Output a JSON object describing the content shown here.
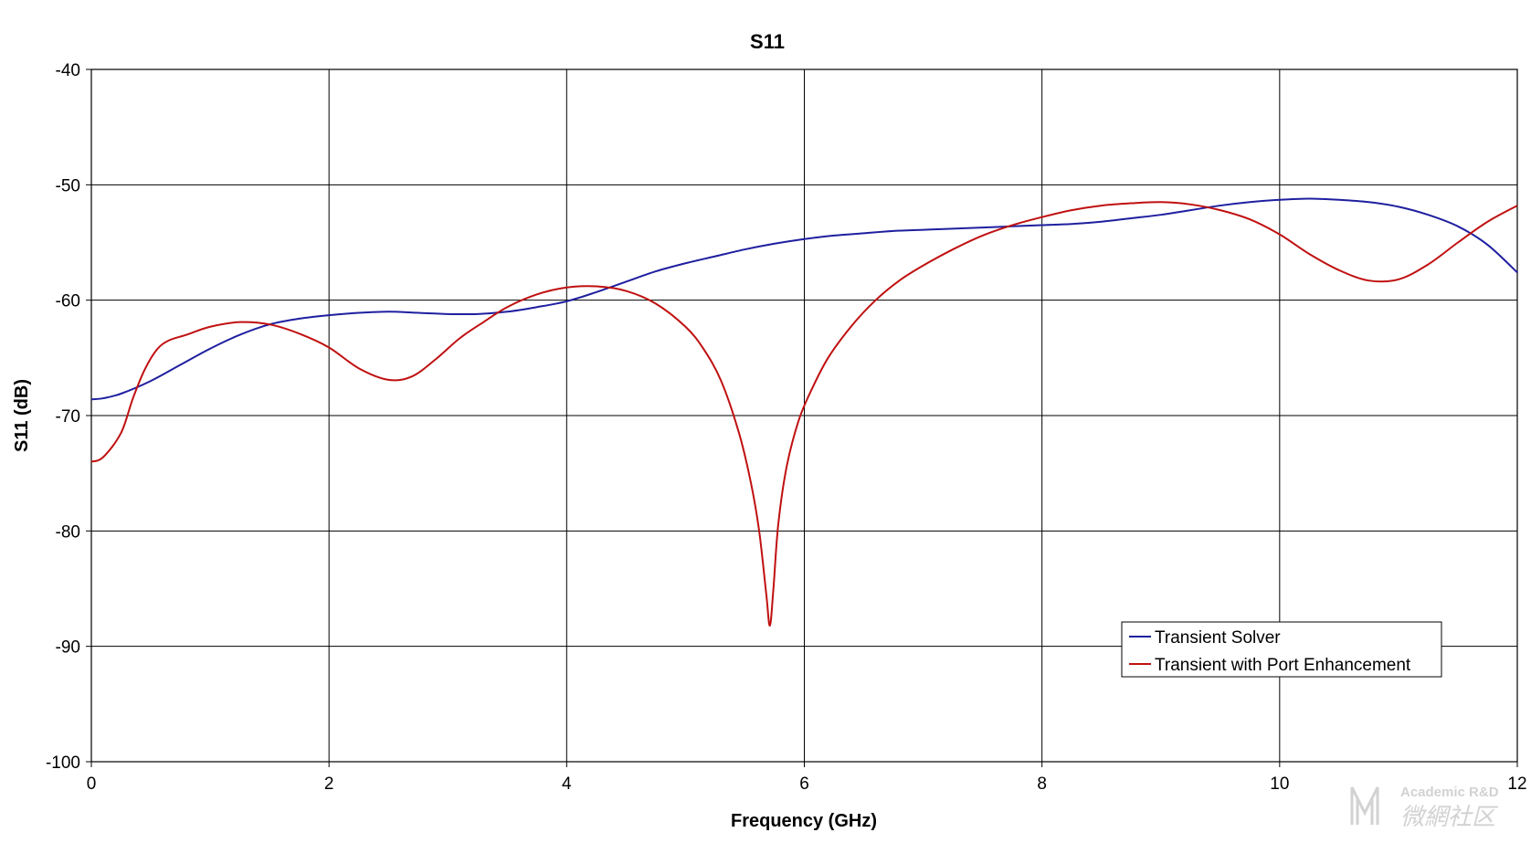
{
  "chart_data": {
    "type": "line",
    "title": "S11",
    "xlabel": "Frequency (GHz)",
    "ylabel": "S11 (dB)",
    "xlim": [
      0,
      12
    ],
    "ylim": [
      -100,
      -40
    ],
    "x_ticks": [
      "0",
      "2",
      "4",
      "6",
      "8",
      "10",
      "12"
    ],
    "y_ticks": [
      "-40",
      "-50",
      "-60",
      "-70",
      "-80",
      "-90",
      "-100"
    ],
    "grid": true,
    "legend_position": "bottom-right",
    "series": [
      {
        "name": "Transient Solver",
        "color": "#1f1fa0",
        "x": [
          0,
          0.1,
          0.25,
          0.5,
          0.75,
          1.0,
          1.25,
          1.5,
          1.75,
          2.0,
          2.25,
          2.5,
          2.75,
          3.0,
          3.25,
          3.5,
          3.75,
          4.0,
          4.25,
          4.5,
          4.75,
          5.0,
          5.25,
          5.5,
          5.75,
          6.0,
          6.25,
          6.5,
          6.75,
          7.0,
          7.25,
          7.5,
          7.75,
          8.0,
          8.25,
          8.5,
          8.75,
          9.0,
          9.25,
          9.5,
          9.75,
          10.0,
          10.25,
          10.5,
          10.75,
          11.0,
          11.25,
          11.5,
          11.75,
          12.0
        ],
        "y": [
          -68.6,
          -68.5,
          -68.1,
          -67.0,
          -65.6,
          -64.2,
          -63.0,
          -62.1,
          -61.6,
          -61.3,
          -61.1,
          -61.0,
          -61.1,
          -61.2,
          -61.2,
          -61.0,
          -60.6,
          -60.1,
          -59.3,
          -58.4,
          -57.5,
          -56.8,
          -56.2,
          -55.6,
          -55.1,
          -54.7,
          -54.4,
          -54.2,
          -54.0,
          -53.9,
          -53.8,
          -53.7,
          -53.6,
          -53.5,
          -53.4,
          -53.2,
          -52.9,
          -52.6,
          -52.2,
          -51.8,
          -51.5,
          -51.3,
          -51.2,
          -51.3,
          -51.5,
          -51.9,
          -52.6,
          -53.6,
          -55.2,
          -57.6
        ]
      },
      {
        "name": "Transient with Port Enhancement",
        "color": "#c01010",
        "x": [
          0,
          0.1,
          0.25,
          0.35,
          0.45,
          0.55,
          0.65,
          0.8,
          1.0,
          1.25,
          1.5,
          1.75,
          2.0,
          2.25,
          2.5,
          2.7,
          2.9,
          3.1,
          3.3,
          3.5,
          3.75,
          4.0,
          4.25,
          4.5,
          4.75,
          5.0,
          5.15,
          5.3,
          5.45,
          5.55,
          5.62,
          5.68,
          5.71,
          5.74,
          5.78,
          5.85,
          5.95,
          6.05,
          6.2,
          6.4,
          6.6,
          6.8,
          7.0,
          7.25,
          7.5,
          7.75,
          8.0,
          8.25,
          8.5,
          8.75,
          9.0,
          9.25,
          9.5,
          9.75,
          10.0,
          10.25,
          10.5,
          10.75,
          11.0,
          11.25,
          11.5,
          11.75,
          12.0
        ],
        "y": [
          -74.0,
          -73.6,
          -71.5,
          -68.5,
          -66.0,
          -64.3,
          -63.5,
          -63.0,
          -62.3,
          -61.9,
          -62.1,
          -62.9,
          -64.1,
          -65.9,
          -66.9,
          -66.6,
          -65.1,
          -63.3,
          -61.9,
          -60.6,
          -59.5,
          -58.9,
          -58.8,
          -59.2,
          -60.3,
          -62.3,
          -64.2,
          -67.0,
          -71.5,
          -75.8,
          -80.0,
          -85.5,
          -88.2,
          -85.0,
          -79.5,
          -74.5,
          -70.5,
          -68.0,
          -65.0,
          -62.2,
          -60.0,
          -58.3,
          -57.0,
          -55.6,
          -54.4,
          -53.5,
          -52.8,
          -52.2,
          -51.8,
          -51.6,
          -51.5,
          -51.7,
          -52.2,
          -53.0,
          -54.3,
          -56.0,
          -57.4,
          -58.3,
          -58.2,
          -56.9,
          -55.0,
          -53.2,
          -51.8
        ]
      }
    ]
  },
  "watermark": {
    "latin": "Academic R&D",
    "cjk": "微網社区"
  }
}
